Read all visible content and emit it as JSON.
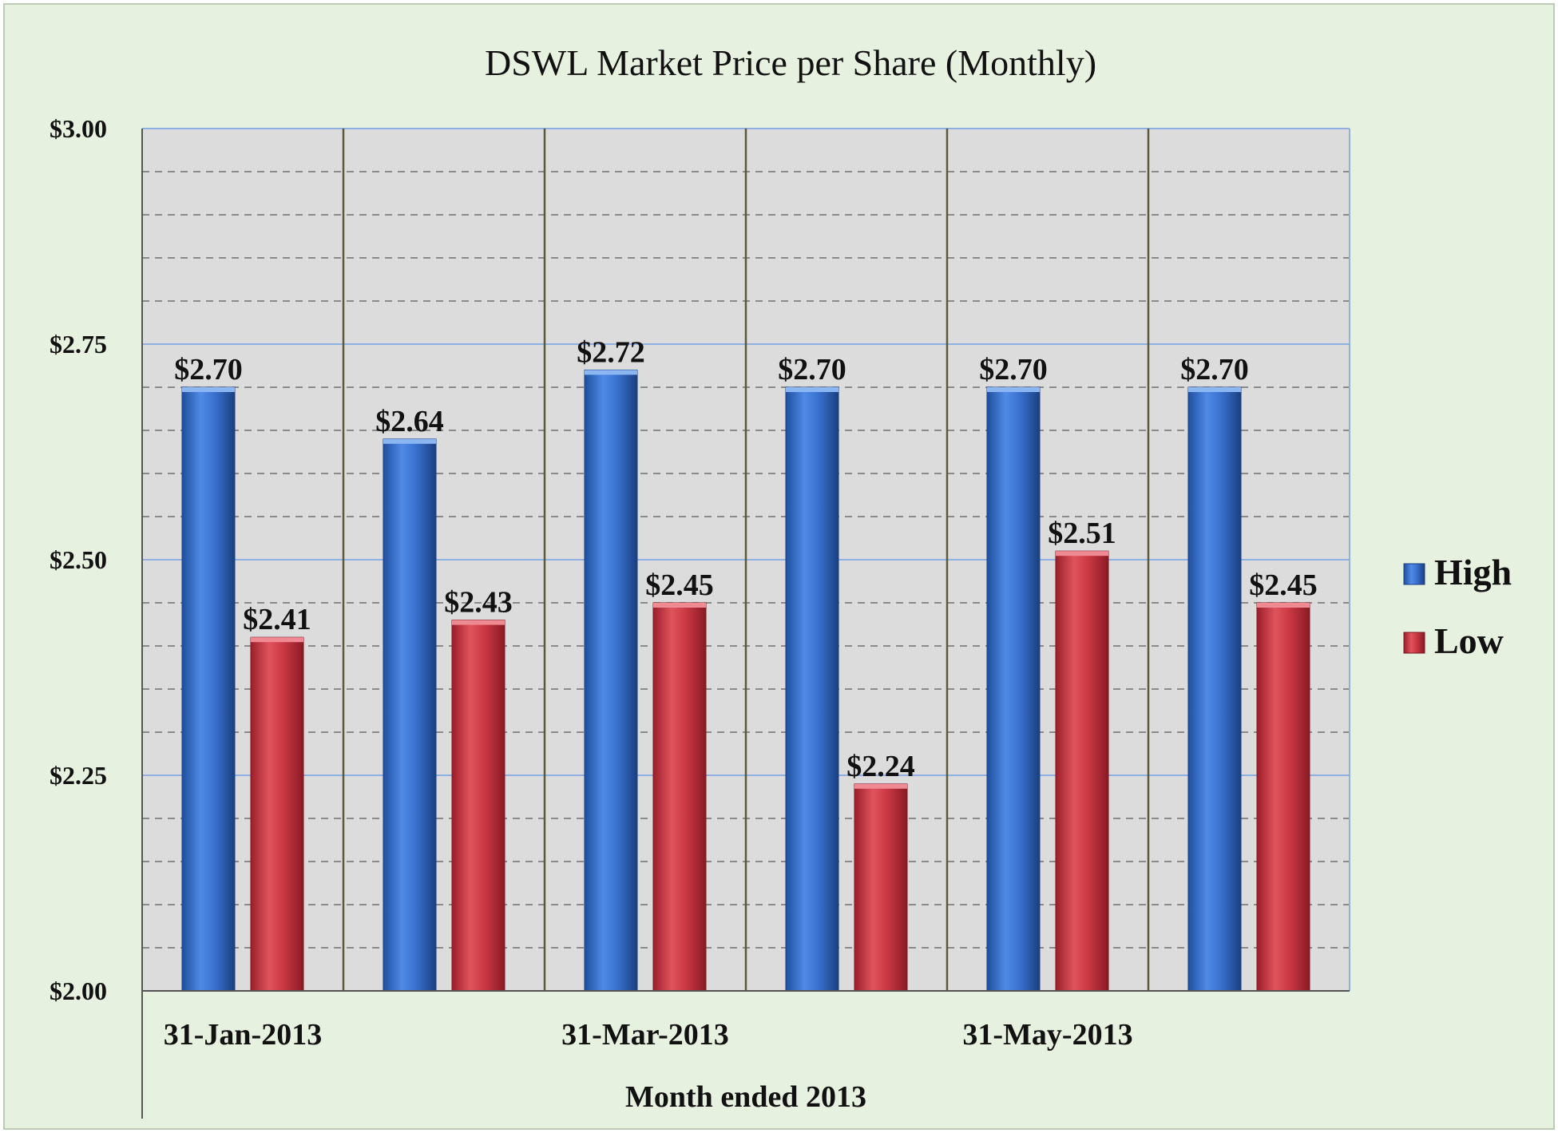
{
  "chart_data": {
    "type": "bar",
    "title": "DSWL Market Price per Share (Monthly)",
    "xlabel": "Month ended 2013",
    "ylabel": "",
    "ylim": [
      2.0,
      3.0
    ],
    "y_ticks": [
      2.0,
      2.25,
      2.5,
      2.75,
      3.0
    ],
    "y_tick_labels": [
      "$2.00",
      "$2.25",
      "$2.50",
      "$2.75",
      "$3.00"
    ],
    "categories": [
      "31-Jan-2013",
      "",
      "31-Mar-2013",
      "",
      "31-May-2013",
      ""
    ],
    "series": [
      {
        "name": "High",
        "color": "#3b73d1",
        "values": [
          2.7,
          2.64,
          2.72,
          2.7,
          2.7,
          2.7
        ],
        "labels": [
          "$2.70",
          "$2.64",
          "$2.72",
          "$2.70",
          "$2.70",
          "$2.70"
        ]
      },
      {
        "name": "Low",
        "color": "#cc3a45",
        "values": [
          2.41,
          2.43,
          2.45,
          2.24,
          2.51,
          2.45
        ],
        "labels": [
          "$2.41",
          "$2.43",
          "$2.45",
          "$2.24",
          "$2.51",
          "$2.45"
        ]
      }
    ],
    "grid": true,
    "legend_position": "right"
  }
}
